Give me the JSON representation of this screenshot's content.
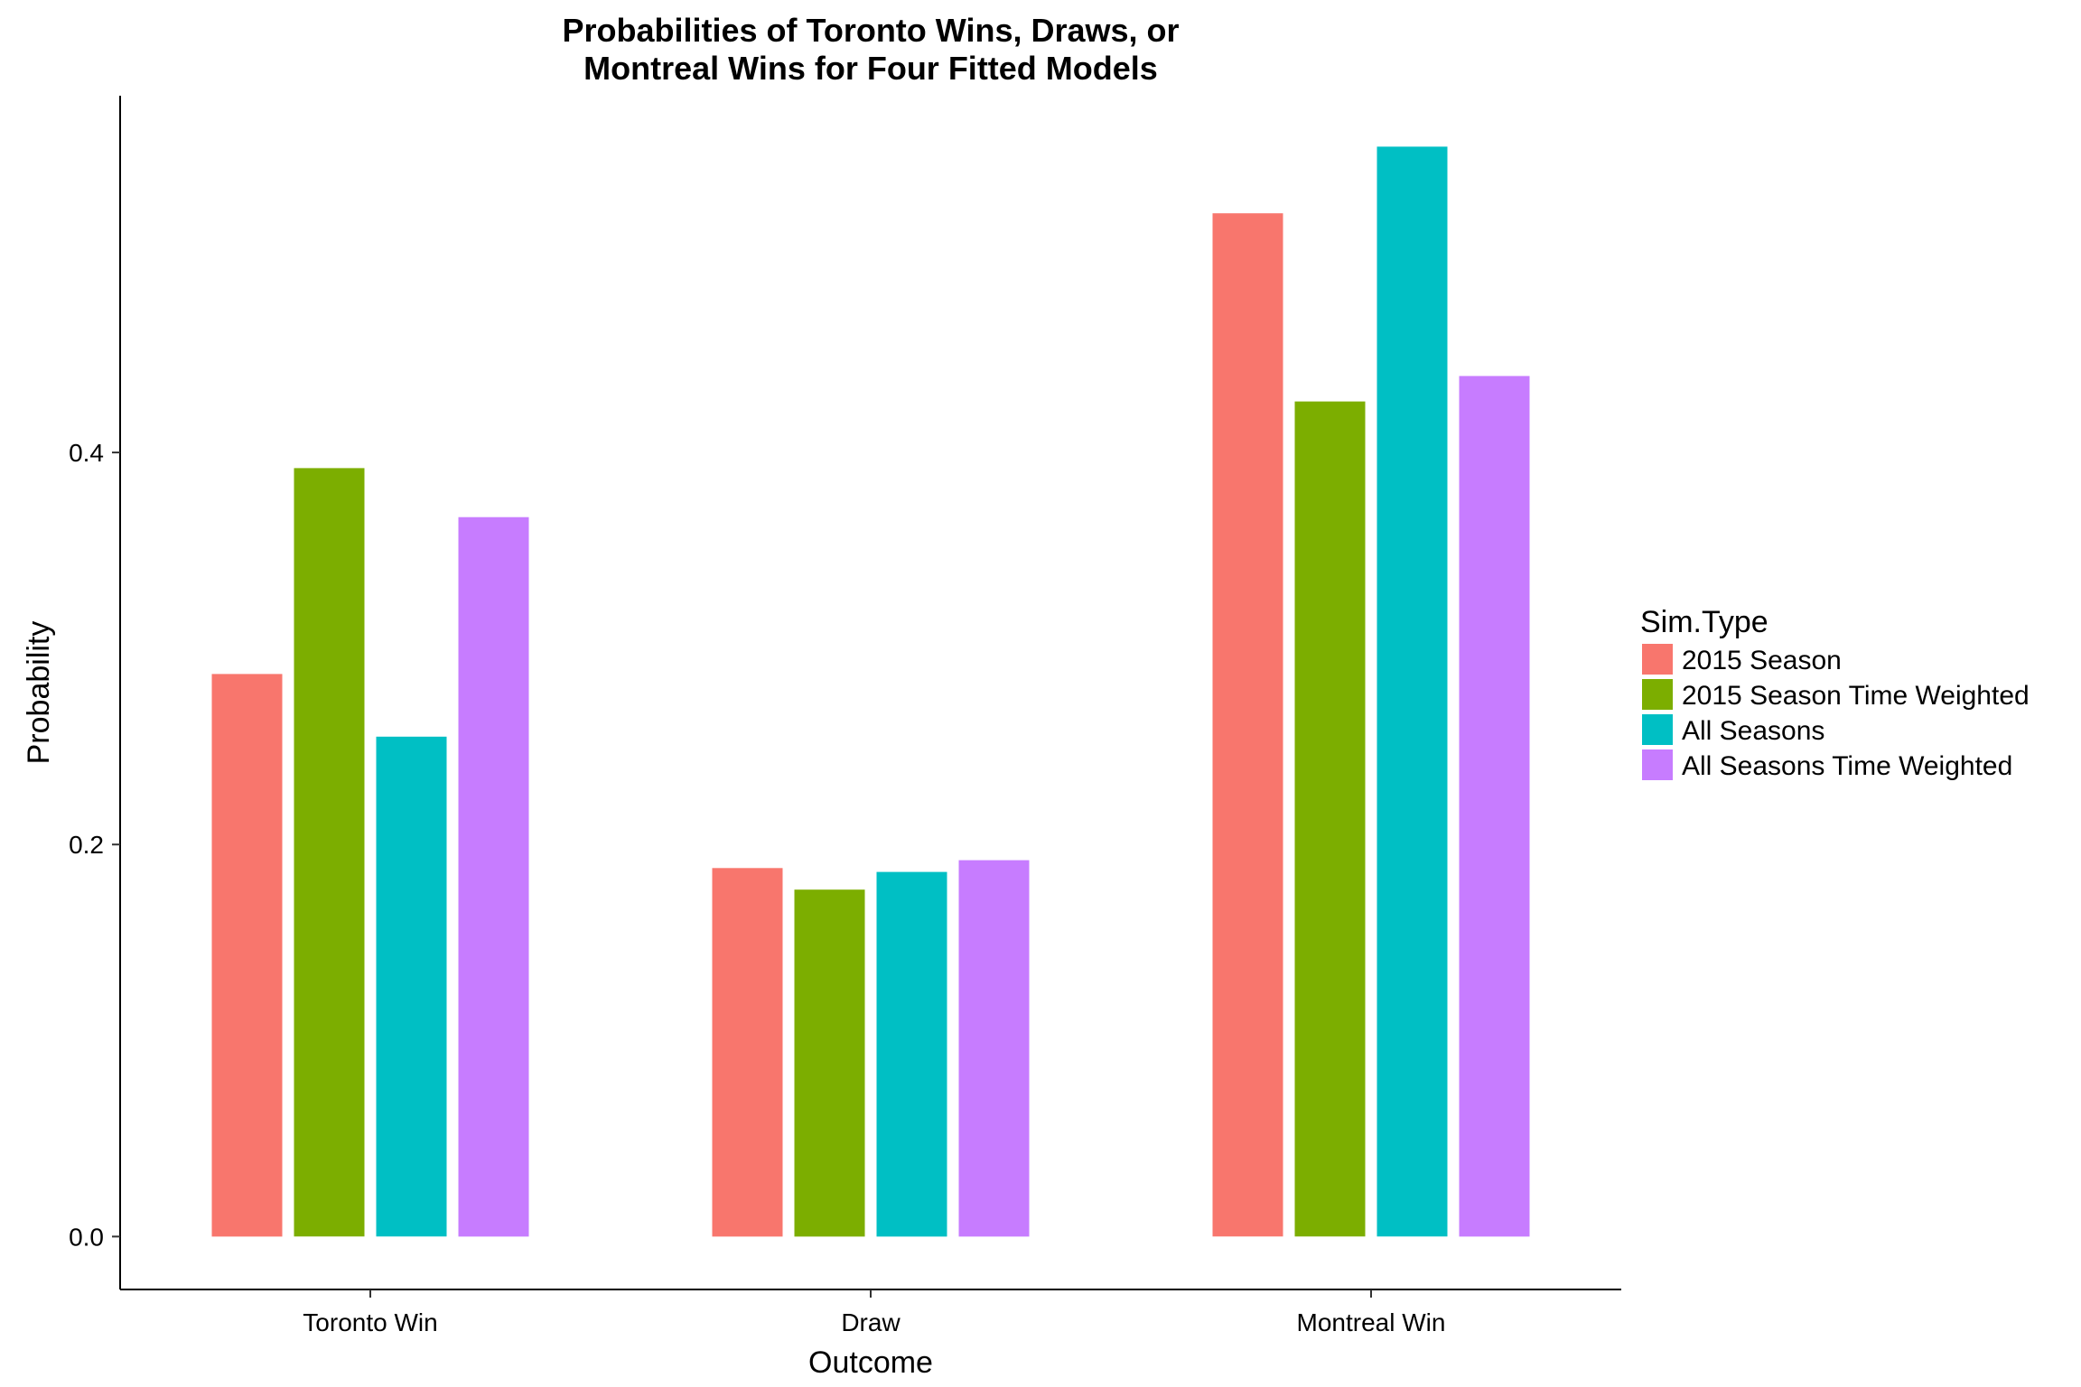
{
  "chart_data": {
    "type": "bar",
    "title": "Probabilities of Toronto Wins, Draws, or Montreal Wins for Four Fitted Models",
    "title_lines": [
      "Probabilities of Toronto Wins, Draws, or",
      "Montreal Wins for Four Fitted Models"
    ],
    "xlabel": "Outcome",
    "ylabel": "Probability",
    "categories": [
      "Toronto Win",
      "Draw",
      "Montreal Win"
    ],
    "yticks": [
      0.0,
      0.2,
      0.4
    ],
    "ytick_labels": [
      "0.0",
      "0.2",
      "0.4"
    ],
    "ylim": [
      -0.027,
      0.582
    ],
    "grid": false,
    "legend": {
      "title": "Sim.Type",
      "placement": "right"
    },
    "series": [
      {
        "name": "2015 Season",
        "color": "#F8766D",
        "values": [
          0.287,
          0.188,
          0.522
        ]
      },
      {
        "name": "2015 Season Time Weighted",
        "color": "#7CAE00",
        "values": [
          0.392,
          0.177,
          0.426
        ]
      },
      {
        "name": "All Seasons",
        "color": "#00BFC4",
        "values": [
          0.255,
          0.186,
          0.556
        ]
      },
      {
        "name": "All Seasons Time Weighted",
        "color": "#C77CFF",
        "values": [
          0.367,
          0.192,
          0.439
        ]
      }
    ]
  }
}
